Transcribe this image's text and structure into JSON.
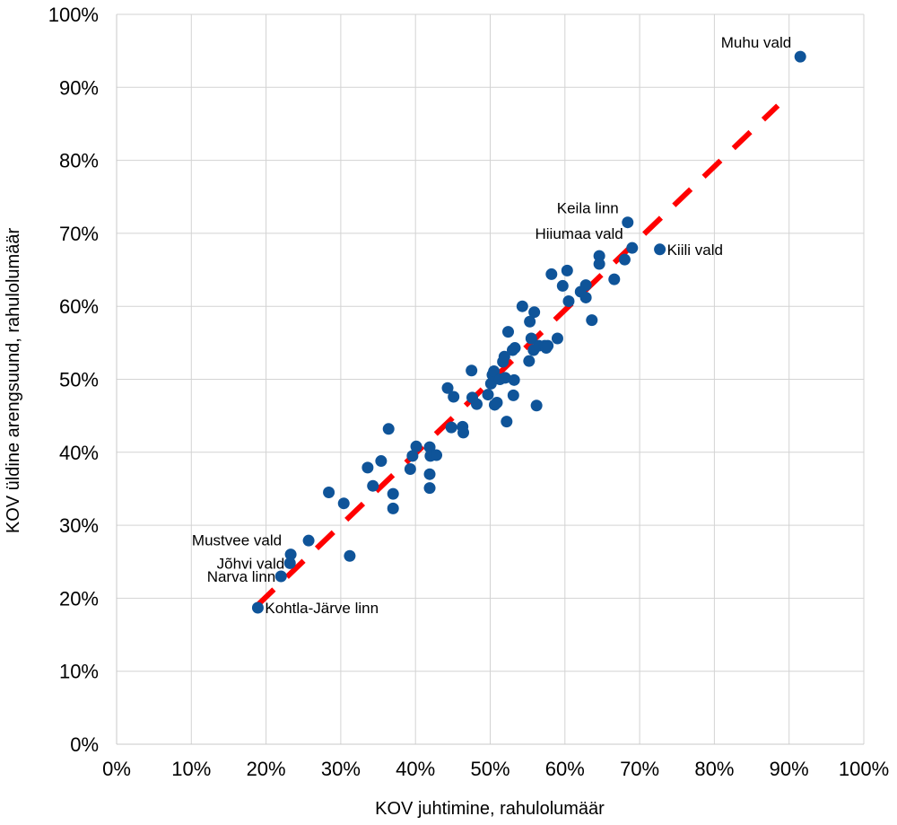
{
  "chart_data": {
    "type": "scatter",
    "xlabel": "KOV juhtimine, rahulolumäär",
    "ylabel": "KOV üldine arengsuund, rahulolumäär",
    "xlim": [
      0,
      100
    ],
    "ylim": [
      0,
      100
    ],
    "x_ticks": [
      "0%",
      "10%",
      "20%",
      "30%",
      "40%",
      "50%",
      "60%",
      "70%",
      "80%",
      "90%",
      "100%"
    ],
    "y_ticks": [
      "0%",
      "10%",
      "20%",
      "30%",
      "40%",
      "50%",
      "60%",
      "70%",
      "80%",
      "90%",
      "100%"
    ],
    "grid": true,
    "colors": {
      "points": "#0f5499",
      "trendline": "#ff0000",
      "grid": "#d3d3d3"
    },
    "trendline": {
      "x": [
        18.8,
        88.5
      ],
      "y": [
        19.0,
        87.5
      ],
      "style": "dashed"
    },
    "labeled_points": [
      {
        "label": "Muhu vald",
        "x": 91.5,
        "y": 94.2,
        "anchor": "left-above"
      },
      {
        "label": "Keila linn",
        "x": 68.4,
        "y": 71.5,
        "anchor": "left-above"
      },
      {
        "label": "Hiiumaa vald",
        "x": 69.0,
        "y": 68.0,
        "anchor": "left-above"
      },
      {
        "label": "Kiili vald",
        "x": 72.7,
        "y": 67.8,
        "anchor": "right"
      },
      {
        "label": "Mustvee vald",
        "x": 23.3,
        "y": 26.0,
        "anchor": "left-above"
      },
      {
        "label": "Jõhvi vald",
        "x": 23.2,
        "y": 24.8,
        "anchor": "left"
      },
      {
        "label": "Narva linn",
        "x": 22.0,
        "y": 23.0,
        "anchor": "left"
      },
      {
        "label": "Kohtla-Järve linn",
        "x": 18.9,
        "y": 18.7,
        "anchor": "right"
      }
    ],
    "points": [
      {
        "x": 25.7,
        "y": 27.9
      },
      {
        "x": 28.4,
        "y": 34.5
      },
      {
        "x": 30.4,
        "y": 33.0
      },
      {
        "x": 31.2,
        "y": 25.8
      },
      {
        "x": 33.6,
        "y": 37.9
      },
      {
        "x": 34.3,
        "y": 35.4
      },
      {
        "x": 35.4,
        "y": 38.8
      },
      {
        "x": 36.4,
        "y": 43.2
      },
      {
        "x": 37.0,
        "y": 34.3
      },
      {
        "x": 37.0,
        "y": 32.3
      },
      {
        "x": 39.3,
        "y": 37.7
      },
      {
        "x": 39.6,
        "y": 39.5
      },
      {
        "x": 40.1,
        "y": 40.8
      },
      {
        "x": 41.9,
        "y": 40.7
      },
      {
        "x": 42.0,
        "y": 39.5
      },
      {
        "x": 42.8,
        "y": 39.6
      },
      {
        "x": 41.9,
        "y": 37.0
      },
      {
        "x": 41.9,
        "y": 35.1
      },
      {
        "x": 44.3,
        "y": 48.8
      },
      {
        "x": 45.1,
        "y": 47.6
      },
      {
        "x": 44.8,
        "y": 43.4
      },
      {
        "x": 46.3,
        "y": 43.5
      },
      {
        "x": 46.4,
        "y": 42.7
      },
      {
        "x": 47.5,
        "y": 51.2
      },
      {
        "x": 47.6,
        "y": 47.5
      },
      {
        "x": 48.2,
        "y": 46.6
      },
      {
        "x": 49.7,
        "y": 47.9
      },
      {
        "x": 50.1,
        "y": 49.4
      },
      {
        "x": 50.3,
        "y": 50.6
      },
      {
        "x": 50.5,
        "y": 51.1
      },
      {
        "x": 50.6,
        "y": 46.5
      },
      {
        "x": 50.9,
        "y": 46.8
      },
      {
        "x": 51.3,
        "y": 50.0
      },
      {
        "x": 51.7,
        "y": 52.4
      },
      {
        "x": 51.9,
        "y": 53.1
      },
      {
        "x": 52.0,
        "y": 50.2
      },
      {
        "x": 52.2,
        "y": 44.2
      },
      {
        "x": 52.4,
        "y": 56.5
      },
      {
        "x": 53.0,
        "y": 54.0
      },
      {
        "x": 53.2,
        "y": 49.9
      },
      {
        "x": 53.1,
        "y": 47.8
      },
      {
        "x": 53.3,
        "y": 54.3
      },
      {
        "x": 54.3,
        "y": 60.0
      },
      {
        "x": 55.2,
        "y": 52.5
      },
      {
        "x": 55.3,
        "y": 57.9
      },
      {
        "x": 55.5,
        "y": 55.6
      },
      {
        "x": 55.8,
        "y": 54.0
      },
      {
        "x": 55.9,
        "y": 59.2
      },
      {
        "x": 56.2,
        "y": 46.4
      },
      {
        "x": 56.5,
        "y": 54.6
      },
      {
        "x": 57.3,
        "y": 54.6
      },
      {
        "x": 57.5,
        "y": 54.3
      },
      {
        "x": 57.7,
        "y": 54.6
      },
      {
        "x": 58.2,
        "y": 64.4
      },
      {
        "x": 59.0,
        "y": 55.6
      },
      {
        "x": 59.7,
        "y": 62.8
      },
      {
        "x": 60.3,
        "y": 64.9
      },
      {
        "x": 60.5,
        "y": 60.7
      },
      {
        "x": 62.1,
        "y": 62.0
      },
      {
        "x": 62.8,
        "y": 62.9
      },
      {
        "x": 62.8,
        "y": 61.2
      },
      {
        "x": 63.6,
        "y": 58.1
      },
      {
        "x": 64.6,
        "y": 66.9
      },
      {
        "x": 64.6,
        "y": 65.8
      },
      {
        "x": 66.6,
        "y": 63.7
      },
      {
        "x": 68.0,
        "y": 66.4
      },
      {
        "x": 68.4,
        "y": 71.5
      },
      {
        "x": 69.0,
        "y": 68.0
      },
      {
        "x": 72.7,
        "y": 67.8
      },
      {
        "x": 91.5,
        "y": 94.2
      },
      {
        "x": 23.3,
        "y": 26.0
      },
      {
        "x": 23.2,
        "y": 24.8
      },
      {
        "x": 22.0,
        "y": 23.0
      },
      {
        "x": 18.9,
        "y": 18.7
      }
    ]
  }
}
